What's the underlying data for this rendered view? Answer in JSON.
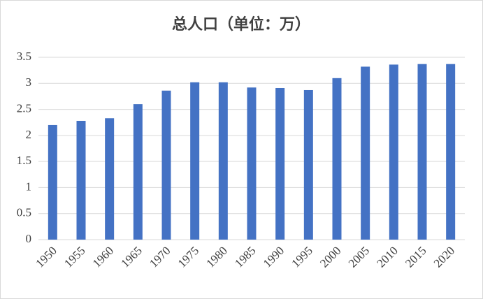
{
  "chart_data": {
    "type": "bar",
    "title": "总人口（单位：万）",
    "categories": [
      "1950",
      "1955",
      "1960",
      "1965",
      "1970",
      "1975",
      "1980",
      "1985",
      "1990",
      "1995",
      "2000",
      "2005",
      "2010",
      "2015",
      "2020"
    ],
    "values": [
      2.2,
      2.28,
      2.33,
      2.6,
      2.86,
      3.02,
      3.02,
      2.92,
      2.91,
      2.87,
      3.1,
      3.32,
      3.36,
      3.37,
      3.37
    ],
    "color": "#4472c4",
    "ylim": [
      0,
      3.5
    ],
    "yticks": [
      0,
      0.5,
      1,
      1.5,
      2,
      2.5,
      3,
      3.5
    ],
    "grid": true
  }
}
